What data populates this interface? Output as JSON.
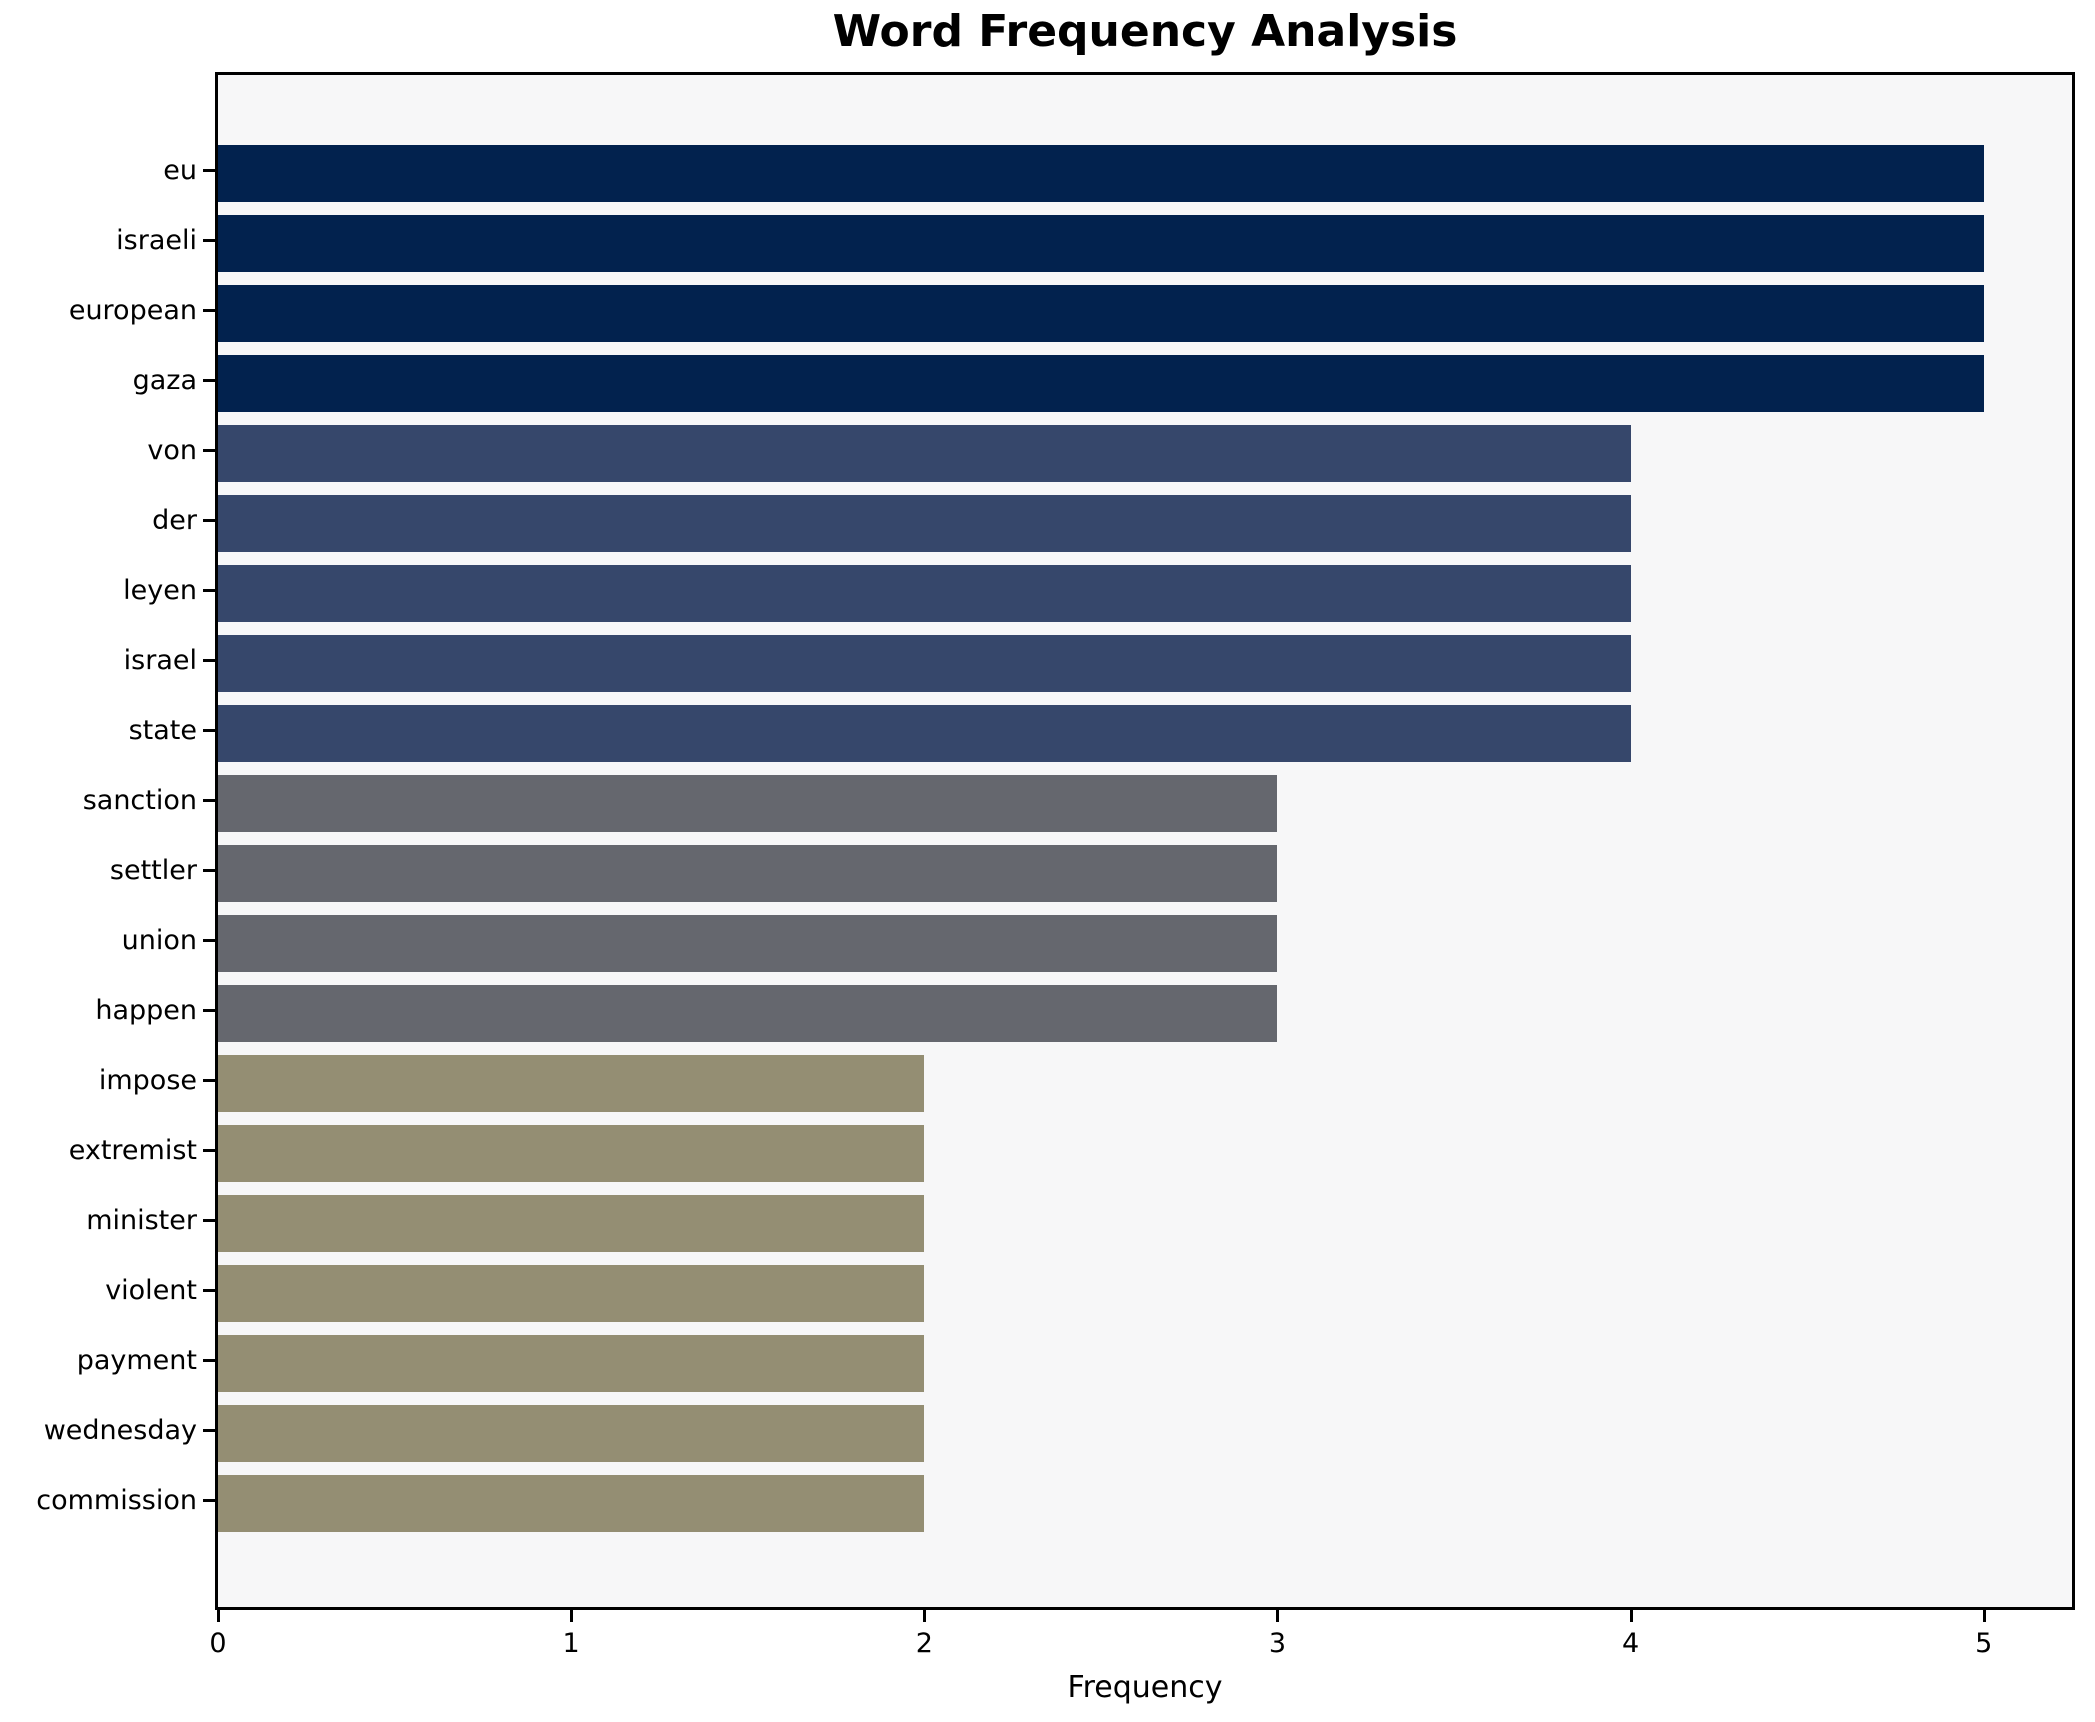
{
  "chart_data": {
    "type": "bar",
    "orientation": "horizontal",
    "title": "Word Frequency Analysis",
    "xlabel": "Frequency",
    "ylabel": "",
    "categories": [
      "eu",
      "israeli",
      "european",
      "gaza",
      "von",
      "der",
      "leyen",
      "israel",
      "state",
      "sanction",
      "settler",
      "union",
      "happen",
      "impose",
      "extremist",
      "minister",
      "violent",
      "payment",
      "wednesday",
      "commission"
    ],
    "values": [
      5,
      5,
      5,
      5,
      4,
      4,
      4,
      4,
      4,
      3,
      3,
      3,
      3,
      2,
      2,
      2,
      2,
      2,
      2,
      2
    ],
    "xlim": [
      0,
      5.25
    ],
    "xticks": [
      0,
      1,
      2,
      3,
      4,
      5
    ],
    "grid": false,
    "legend_position": "none",
    "colors_by_value": {
      "5": "#02224e",
      "4": "#36476b",
      "3": "#65676e",
      "2": "#948e73"
    },
    "plot_background": "#f7f7f8",
    "axis_color": "#000000"
  }
}
